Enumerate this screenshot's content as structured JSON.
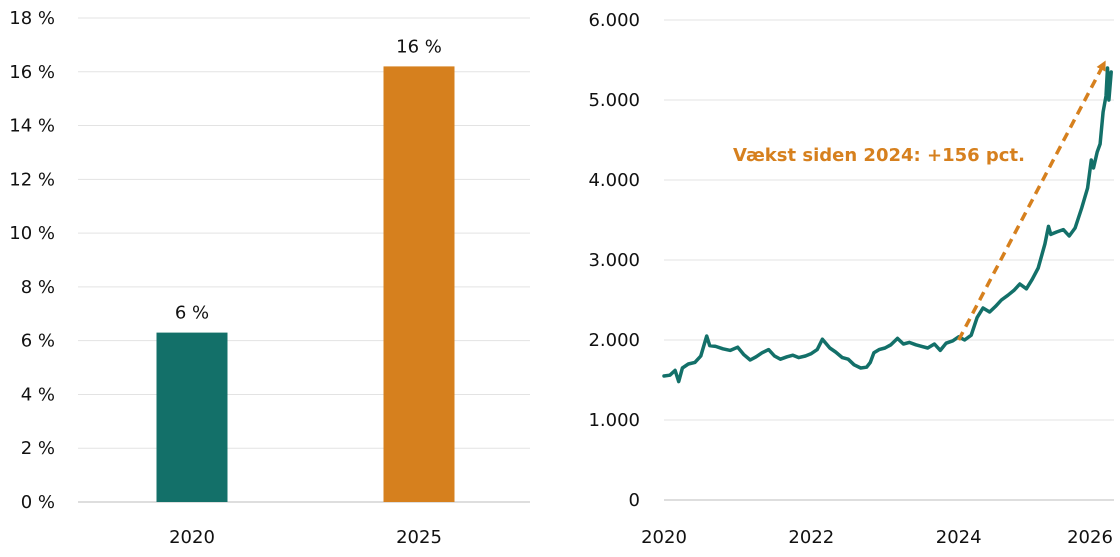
{
  "chart_data": [
    {
      "type": "bar",
      "categories": [
        "2020",
        "2025"
      ],
      "values": [
        6.3,
        16.2
      ],
      "data_labels": [
        "6 %",
        "16 %"
      ],
      "colors": [
        "#137069",
        "#d6801e"
      ],
      "ylim": [
        0,
        18
      ],
      "y_ticks": [
        {
          "value": 0,
          "label": "0 %"
        },
        {
          "value": 2,
          "label": "2 %"
        },
        {
          "value": 4,
          "label": "4 %"
        },
        {
          "value": 6,
          "label": "6 %"
        },
        {
          "value": 8,
          "label": "8 %"
        },
        {
          "value": 10,
          "label": "10 %"
        },
        {
          "value": 12,
          "label": "12 %"
        },
        {
          "value": 14,
          "label": "14 %"
        },
        {
          "value": 16,
          "label": "16 %"
        },
        {
          "value": 18,
          "label": "18 %"
        }
      ],
      "grid": true,
      "legend": "none"
    },
    {
      "type": "line",
      "xlim": [
        2020,
        2026
      ],
      "ylim": [
        0,
        6000
      ],
      "x_ticks": [
        {
          "value": 2020,
          "label": "2020"
        },
        {
          "value": 2022,
          "label": "2022"
        },
        {
          "value": 2024,
          "label": "2024"
        },
        {
          "value": 2026,
          "label": "2026"
        }
      ],
      "y_ticks": [
        {
          "value": 0,
          "label": "0"
        },
        {
          "value": 1000,
          "label": "1.000"
        },
        {
          "value": 2000,
          "label": "2.000"
        },
        {
          "value": 3000,
          "label": "3.000"
        },
        {
          "value": 4000,
          "label": "4.000"
        },
        {
          "value": 5000,
          "label": "5.000"
        },
        {
          "value": 6000,
          "label": "6.000"
        }
      ],
      "series": [
        {
          "color": "#137069",
          "points": [
            [
              2020.0,
              1550
            ],
            [
              2020.08,
              1560
            ],
            [
              2020.15,
              1620
            ],
            [
              2020.2,
              1480
            ],
            [
              2020.25,
              1650
            ],
            [
              2020.33,
              1700
            ],
            [
              2020.42,
              1720
            ],
            [
              2020.5,
              1800
            ],
            [
              2020.58,
              2050
            ],
            [
              2020.62,
              1930
            ],
            [
              2020.7,
              1920
            ],
            [
              2020.8,
              1890
            ],
            [
              2020.9,
              1870
            ],
            [
              2021.0,
              1910
            ],
            [
              2021.08,
              1820
            ],
            [
              2021.17,
              1750
            ],
            [
              2021.25,
              1790
            ],
            [
              2021.33,
              1840
            ],
            [
              2021.42,
              1880
            ],
            [
              2021.5,
              1800
            ],
            [
              2021.58,
              1760
            ],
            [
              2021.67,
              1790
            ],
            [
              2021.75,
              1810
            ],
            [
              2021.83,
              1780
            ],
            [
              2021.92,
              1800
            ],
            [
              2022.0,
              1830
            ],
            [
              2022.08,
              1880
            ],
            [
              2022.15,
              2010
            ],
            [
              2022.25,
              1900
            ],
            [
              2022.33,
              1850
            ],
            [
              2022.42,
              1780
            ],
            [
              2022.5,
              1760
            ],
            [
              2022.58,
              1690
            ],
            [
              2022.67,
              1650
            ],
            [
              2022.75,
              1660
            ],
            [
              2022.8,
              1720
            ],
            [
              2022.85,
              1840
            ],
            [
              2022.92,
              1880
            ],
            [
              2023.0,
              1900
            ],
            [
              2023.08,
              1940
            ],
            [
              2023.17,
              2020
            ],
            [
              2023.25,
              1950
            ],
            [
              2023.33,
              1970
            ],
            [
              2023.42,
              1940
            ],
            [
              2023.5,
              1920
            ],
            [
              2023.58,
              1900
            ],
            [
              2023.67,
              1950
            ],
            [
              2023.75,
              1870
            ],
            [
              2023.83,
              1960
            ],
            [
              2023.92,
              1990
            ],
            [
              2024.0,
              2040
            ],
            [
              2024.08,
              2000
            ],
            [
              2024.17,
              2060
            ],
            [
              2024.25,
              2280
            ],
            [
              2024.33,
              2400
            ],
            [
              2024.42,
              2350
            ],
            [
              2024.5,
              2420
            ],
            [
              2024.58,
              2500
            ],
            [
              2024.67,
              2560
            ],
            [
              2024.75,
              2620
            ],
            [
              2024.83,
              2700
            ],
            [
              2024.92,
              2640
            ],
            [
              2025.0,
              2760
            ],
            [
              2025.08,
              2900
            ],
            [
              2025.17,
              3200
            ],
            [
              2025.22,
              3420
            ],
            [
              2025.25,
              3320
            ],
            [
              2025.33,
              3350
            ],
            [
              2025.42,
              3380
            ],
            [
              2025.5,
              3300
            ],
            [
              2025.58,
              3400
            ],
            [
              2025.67,
              3650
            ],
            [
              2025.75,
              3900
            ],
            [
              2025.8,
              4250
            ],
            [
              2025.83,
              4150
            ],
            [
              2025.88,
              4350
            ],
            [
              2025.92,
              4450
            ],
            [
              2025.96,
              4850
            ],
            [
              2026.0,
              5050
            ],
            [
              2026.02,
              5400
            ],
            [
              2026.04,
              5000
            ],
            [
              2026.07,
              5350
            ]
          ]
        }
      ],
      "annotation": {
        "text": "Vækst siden 2024: +156 pct.",
        "color": "#d6801e",
        "arrow_from": [
          2024.0,
          2000
        ],
        "arrow_to": [
          2025.97,
          5450
        ]
      },
      "grid": true,
      "legend": "none"
    }
  ]
}
